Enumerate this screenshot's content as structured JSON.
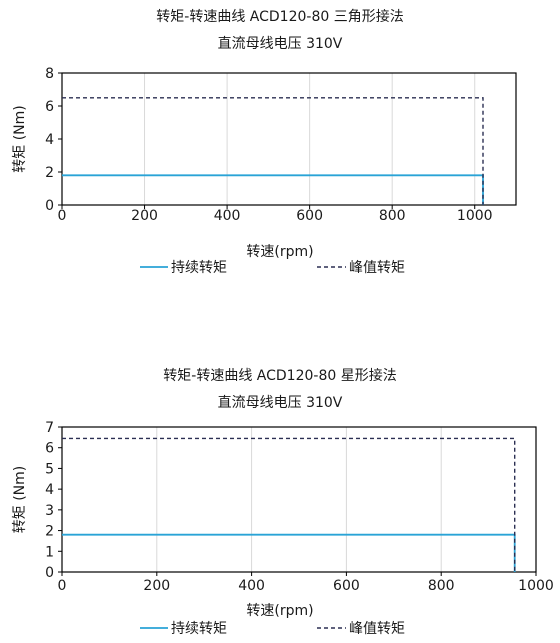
{
  "colors": {
    "continuous": "#29a3d6",
    "peak": "#2b2f52",
    "grid": "#d9d9d9",
    "axis": "#000000"
  },
  "legend": {
    "continuous_label": "持续转矩",
    "peak_label": "峰值转矩",
    "placement": "bottom-center"
  },
  "chart_data": [
    {
      "type": "line",
      "title": "转矩-转速曲线 ACD120-80 三角形接法",
      "subtitle": "直流母线电压 310V",
      "xlabel": "转速(rpm)",
      "ylabel": "转矩 (Nm)",
      "xlim": [
        0,
        1100
      ],
      "ylim": [
        0,
        8
      ],
      "xticks": [
        0,
        200,
        400,
        600,
        800,
        1000
      ],
      "yticks": [
        0,
        2,
        4,
        6,
        8
      ],
      "grid": "vertical",
      "series": [
        {
          "name": "持续转矩",
          "style": "solid",
          "x": [
            0,
            1020,
            1020
          ],
          "y": [
            1.8,
            1.8,
            0
          ]
        },
        {
          "name": "峰值转矩",
          "style": "dashed",
          "x": [
            0,
            1020,
            1020
          ],
          "y": [
            6.5,
            6.5,
            0
          ]
        }
      ]
    },
    {
      "type": "line",
      "title": "转矩-转速曲线 ACD120-80 星形接法",
      "subtitle": "直流母线电压 310V",
      "xlabel": "转速(rpm)",
      "ylabel": "转矩 (Nm)",
      "xlim": [
        0,
        1000
      ],
      "ylim": [
        0,
        7
      ],
      "xticks": [
        0,
        200,
        400,
        600,
        800,
        1000
      ],
      "yticks": [
        0,
        1,
        2,
        3,
        4,
        5,
        6,
        7
      ],
      "grid": "vertical",
      "series": [
        {
          "name": "持续转矩",
          "style": "solid",
          "x": [
            0,
            955,
            955
          ],
          "y": [
            1.8,
            1.8,
            0
          ]
        },
        {
          "name": "峰值转矩",
          "style": "dashed",
          "x": [
            0,
            955,
            955
          ],
          "y": [
            6.45,
            6.45,
            0
          ]
        }
      ]
    }
  ]
}
